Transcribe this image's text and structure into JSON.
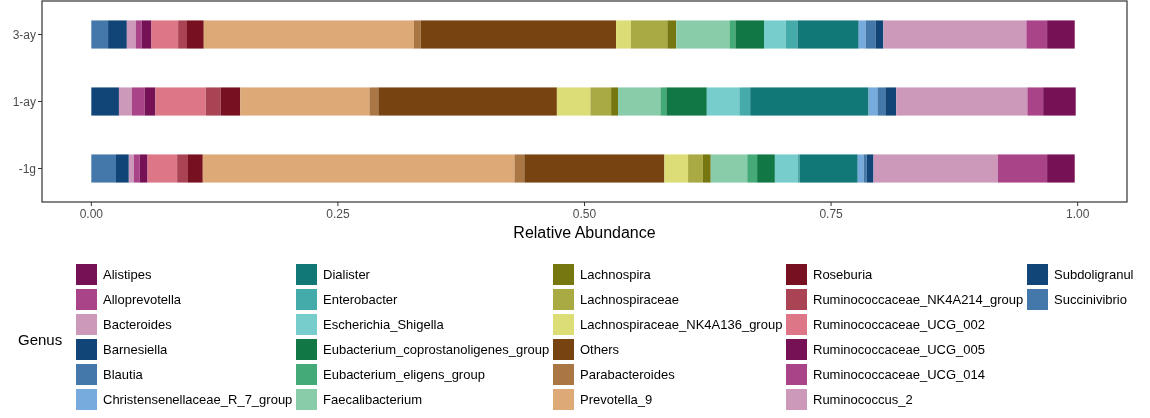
{
  "chart_data": {
    "type": "bar",
    "orientation": "horizontal",
    "stacked": true,
    "categories": [
      "3-ay",
      "1-ay",
      "-1g"
    ],
    "xlabel": "Relative Abundance",
    "legend_title": "Genus",
    "legend": "bottom",
    "xlim": [
      -0.05,
      1.05
    ],
    "xticks": [
      {
        "value": 0,
        "label": "0.00"
      },
      {
        "value": 0.25,
        "label": "0.25"
      },
      {
        "value": 0.5,
        "label": "0.50"
      },
      {
        "value": 0.75,
        "label": "0.75"
      },
      {
        "value": 1,
        "label": "1.00"
      }
    ],
    "series": [
      {
        "name": "Succinivibrio",
        "color": "#4477aa",
        "values": [
          0.017,
          0,
          0.025
        ]
      },
      {
        "name": "Subdoligranul",
        "color": "#114477",
        "values": [
          0.019,
          0.028,
          0.013
        ]
      },
      {
        "name": "Ruminococcus_2",
        "color": "#cc99bb",
        "values": [
          0.009,
          0.013,
          0.005
        ]
      },
      {
        "name": "Ruminococcaceae_UCG_014",
        "color": "#aa4488",
        "values": [
          0.006,
          0.013,
          0.006
        ]
      },
      {
        "name": "Ruminococcaceae_UCG_005",
        "color": "#771155",
        "values": [
          0.01,
          0.011,
          0.008
        ]
      },
      {
        "name": "Ruminococcaceae_UCG_002",
        "color": "#dd7788",
        "values": [
          0.027,
          0.051,
          0.03
        ]
      },
      {
        "name": "Ruminococcaceae_NK4A214_group",
        "color": "#aa4455",
        "values": [
          0.009,
          0.015,
          0.011
        ]
      },
      {
        "name": "Roseburia",
        "color": "#771122",
        "values": [
          0.017,
          0.02,
          0.015
        ]
      },
      {
        "name": "Prevotella_9",
        "color": "#ddaa77",
        "values": [
          0.213,
          0.131,
          0.316
        ]
      },
      {
        "name": "Parabacteroides",
        "color": "#aa7744",
        "values": [
          0.007,
          0.009,
          0.01
        ]
      },
      {
        "name": "Others",
        "color": "#774411",
        "values": [
          0.198,
          0.181,
          0.142
        ]
      },
      {
        "name": "Lachnospiraceae_NK4A136_group",
        "color": "#dddd77",
        "values": [
          0.015,
          0.034,
          0.024
        ]
      },
      {
        "name": "Lachnospiraceae",
        "color": "#aaaa44",
        "values": [
          0.037,
          0.021,
          0.015
        ]
      },
      {
        "name": "Lachnospira",
        "color": "#777711",
        "values": [
          0.009,
          0.007,
          0.008
        ]
      },
      {
        "name": "Faecalibacterium",
        "color": "#88ccaa",
        "values": [
          0.054,
          0.043,
          0.037
        ]
      },
      {
        "name": "Eubacterium_eligens_group",
        "color": "#44aa77",
        "values": [
          0.006,
          0.006,
          0.01
        ]
      },
      {
        "name": "Eubacterium_coprostanoligenes_group",
        "color": "#117744",
        "values": [
          0.029,
          0.041,
          0.018
        ]
      },
      {
        "name": "Escherichia_Shigella",
        "color": "#77cccc",
        "values": [
          0.022,
          0.033,
          0.023
        ]
      },
      {
        "name": "Enterobacter",
        "color": "#44aaaa",
        "values": [
          0.012,
          0.011,
          0.002
        ]
      },
      {
        "name": "Dialister",
        "color": "#117777",
        "values": [
          0.062,
          0.12,
          0.059
        ]
      },
      {
        "name": "Christensenellaceae_R_7_group",
        "color": "#77aadd",
        "values": [
          0.007,
          0.009,
          0.006
        ]
      },
      {
        "name": "Blautia",
        "color": "#4477aa",
        "values": [
          0.01,
          0.008,
          0.003
        ]
      },
      {
        "name": "Barnesiella",
        "color": "#114477",
        "values": [
          0.008,
          0.011,
          0.007
        ]
      },
      {
        "name": "Bacteroides",
        "color": "#cc99bb",
        "values": [
          0.145,
          0.133,
          0.126
        ]
      },
      {
        "name": "Alloprevotella",
        "color": "#aa4488",
        "values": [
          0.021,
          0.016,
          0.05
        ]
      },
      {
        "name": "Alistipes",
        "color": "#771155",
        "values": [
          0.028,
          0.033,
          0.028
        ]
      }
    ]
  }
}
